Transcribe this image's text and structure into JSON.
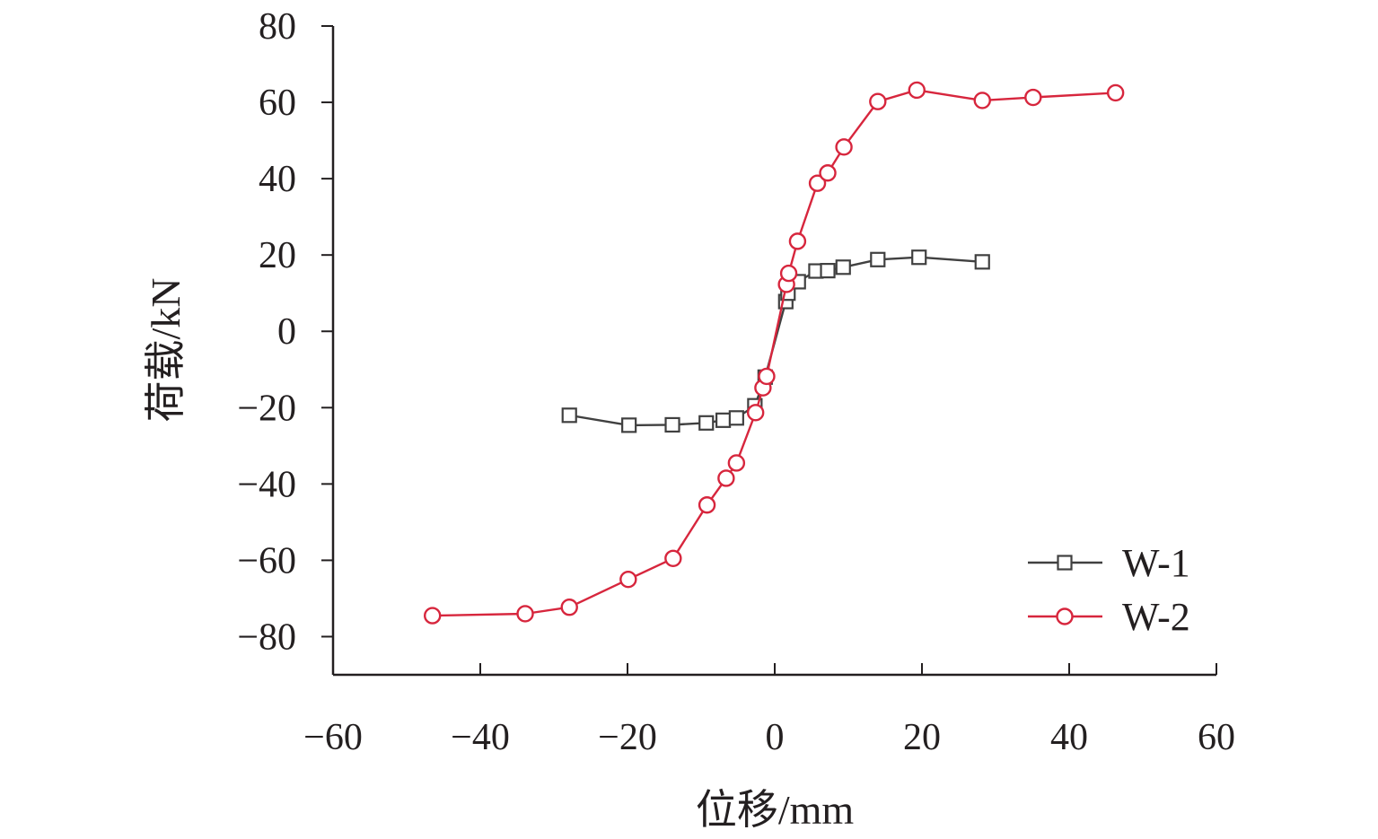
{
  "chart_data": {
    "type": "line",
    "xlabel": "位移/mm",
    "ylabel": "荷载/kN",
    "xlim": [
      -60,
      60
    ],
    "ylim": [
      -90,
      80
    ],
    "x_ticks": [
      -60,
      -40,
      -20,
      0,
      20,
      40,
      60
    ],
    "y_ticks": [
      80,
      60,
      40,
      20,
      0,
      -20,
      -40,
      -60,
      -80
    ],
    "x_tick_labels": [
      "−60",
      "−40",
      "−20",
      "0",
      "20",
      "40",
      "60"
    ],
    "y_tick_labels": [
      "80",
      "60",
      "40",
      "20",
      "0",
      "−20",
      "−40",
      "−60",
      "−80"
    ],
    "grid": false,
    "legend_position": "bottom-right",
    "series": [
      {
        "name": "W-1",
        "color": "#404040",
        "marker": "square",
        "points": [
          [
            -27.9,
            -22.0
          ],
          [
            -19.8,
            -24.6
          ],
          [
            -13.9,
            -24.5
          ],
          [
            -9.3,
            -24.0
          ],
          [
            -7.0,
            -23.3
          ],
          [
            -5.2,
            -22.7
          ],
          [
            -2.7,
            -19.5
          ],
          [
            -1.3,
            -12.0
          ],
          [
            1.5,
            7.8
          ],
          [
            1.8,
            10.0
          ],
          [
            3.2,
            13.0
          ],
          [
            5.6,
            15.8
          ],
          [
            7.2,
            15.9
          ],
          [
            9.3,
            16.8
          ],
          [
            14.0,
            18.8
          ],
          [
            19.6,
            19.4
          ],
          [
            28.2,
            18.2
          ]
        ]
      },
      {
        "name": "W-2",
        "color": "#d7263d",
        "marker": "circle",
        "points": [
          [
            -46.5,
            -74.5
          ],
          [
            -33.9,
            -74.0
          ],
          [
            -27.9,
            -72.3
          ],
          [
            -19.9,
            -65.0
          ],
          [
            -13.8,
            -59.5
          ],
          [
            -9.2,
            -45.5
          ],
          [
            -6.6,
            -38.5
          ],
          [
            -5.2,
            -34.5
          ],
          [
            -2.6,
            -21.3
          ],
          [
            -1.6,
            -14.8
          ],
          [
            -1.1,
            -11.8
          ],
          [
            1.6,
            12.3
          ],
          [
            1.9,
            15.2
          ],
          [
            3.1,
            23.6
          ],
          [
            5.8,
            38.8
          ],
          [
            7.2,
            41.5
          ],
          [
            9.4,
            48.3
          ],
          [
            14.0,
            60.2
          ],
          [
            19.3,
            63.2
          ],
          [
            28.2,
            60.5
          ],
          [
            35.1,
            61.3
          ],
          [
            46.3,
            62.5
          ]
        ]
      }
    ]
  }
}
